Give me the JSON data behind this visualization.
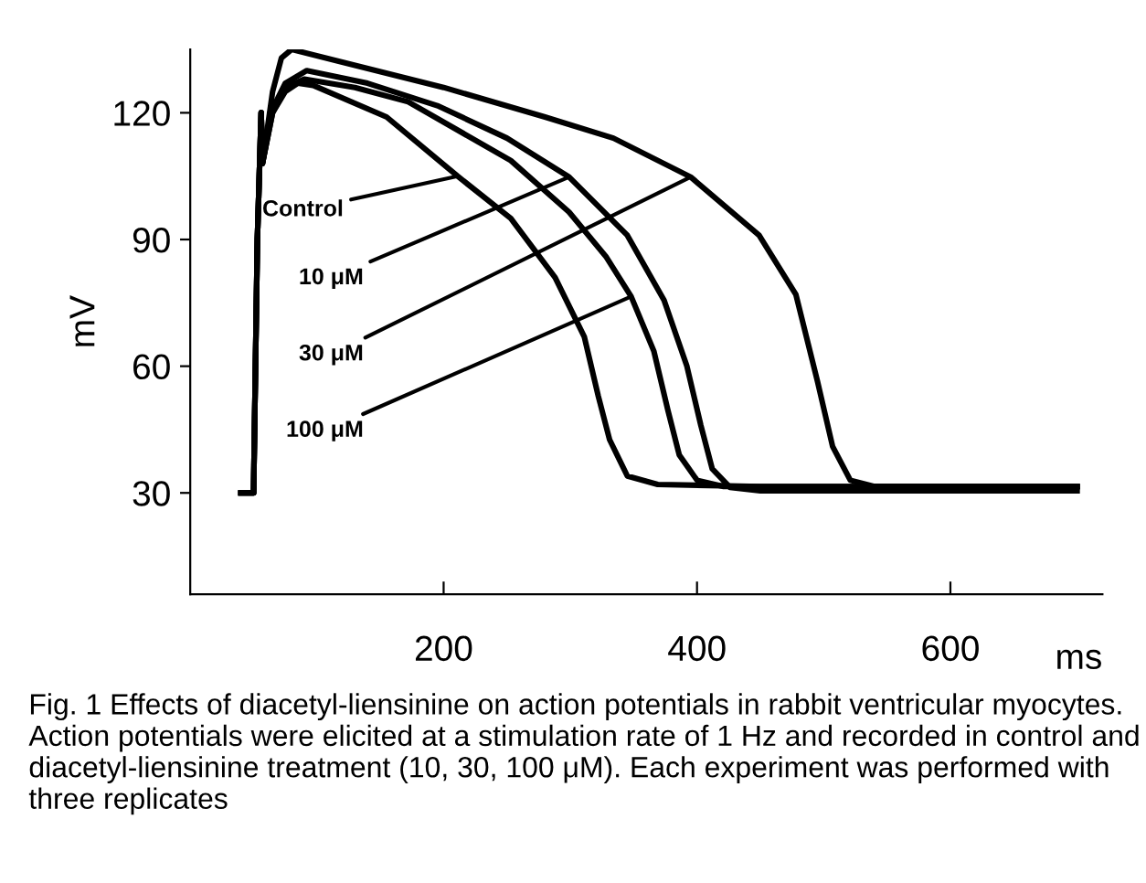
{
  "chart_data": {
    "type": "line",
    "xlabel": "ms",
    "ylabel": "mV",
    "xlim": [
      0,
      720
    ],
    "ylim": [
      6,
      135
    ],
    "xticks": [
      200,
      400,
      600
    ],
    "yticks": [
      30,
      60,
      90,
      120
    ],
    "grid": false,
    "legend": false,
    "marker": "none",
    "line_style": "solid",
    "series": [
      {
        "name": "Control",
        "color": "#000000",
        "x": [
          40,
          50,
          53,
          56,
          57,
          65,
          75,
          85,
          97,
          155,
          211,
          253,
          288,
          311,
          322,
          331,
          345,
          369,
          450,
          550,
          700
        ],
        "values": [
          30,
          30,
          90,
          120,
          108,
          120,
          125,
          127,
          126.5,
          119,
          105,
          95,
          81,
          67,
          53,
          42.6,
          34,
          32,
          31.5,
          31.5,
          31.5
        ]
      },
      {
        "name": "10 μM",
        "color": "#000000",
        "x": [
          40,
          50,
          53,
          56,
          57,
          65,
          75,
          92,
          140,
          195,
          250,
          299,
          345,
          374,
          392,
          403,
          412,
          426,
          450,
          550,
          700
        ],
        "values": [
          30,
          30,
          90,
          120,
          108,
          121,
          127,
          130,
          127,
          121.7,
          114,
          104.8,
          91,
          75.6,
          60,
          46,
          35.7,
          31.3,
          30.5,
          30.5,
          30.5
        ]
      },
      {
        "name": "30 μM",
        "color": "#000000",
        "x": [
          40,
          50,
          53,
          56,
          57,
          65,
          72,
          80,
          120,
          200,
          280,
          334,
          395,
          449,
          478,
          495,
          507,
          521,
          540,
          620,
          700
        ],
        "values": [
          30,
          30,
          90,
          120,
          108,
          125,
          133,
          135,
          132,
          126,
          119,
          114,
          104.8,
          91,
          77,
          56.5,
          41,
          33,
          31.5,
          31.5,
          31.5
        ]
      },
      {
        "name": "100 μM",
        "color": "#000000",
        "x": [
          40,
          50,
          53,
          56,
          57,
          65,
          75,
          90,
          130,
          172,
          253,
          299,
          328,
          348,
          366,
          377,
          386,
          400,
          421,
          550,
          700
        ],
        "values": [
          30,
          30,
          90,
          120,
          108,
          120,
          126,
          128,
          126,
          122.6,
          108.7,
          96.5,
          86,
          76.5,
          63.5,
          49.6,
          39,
          33,
          31.5,
          31.5,
          31.5
        ]
      }
    ],
    "annotations": [
      "Fig. 1 Effects of diacetyl-liensinine on action potentials in rabbit ventricular myocytes. Action potentials were elicited at a stimulation rate of 1 Hz and recorded in control and diacetyl-liensinine treatment (10, 30, 100 μM). Each experiment was performed with three replicates"
    ]
  }
}
